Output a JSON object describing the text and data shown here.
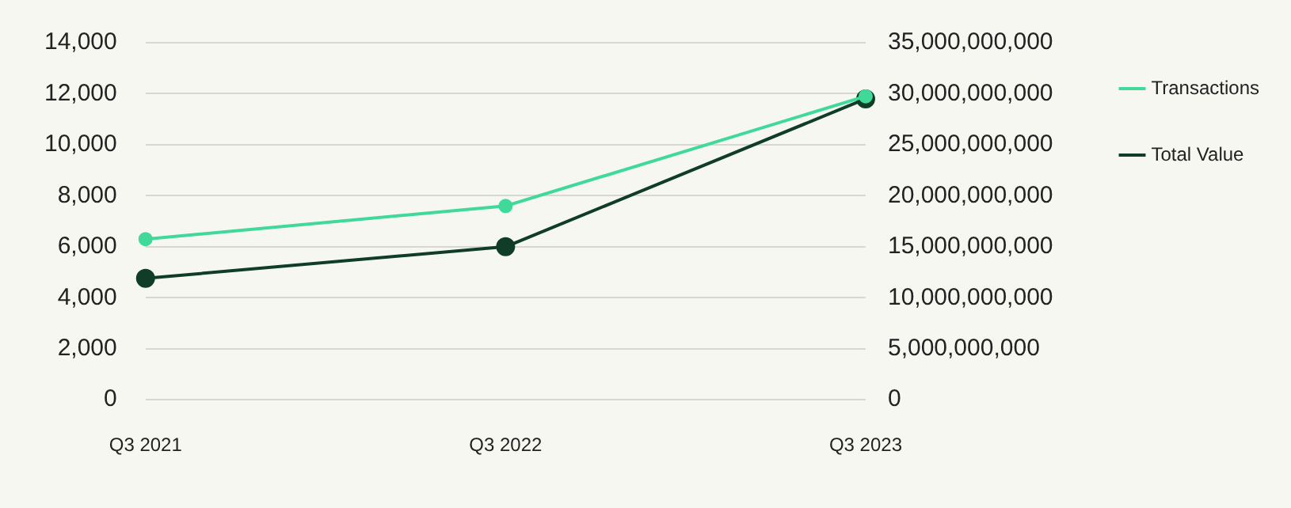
{
  "chart_data": {
    "type": "line",
    "categories": [
      "Q3 2021",
      "Q3 2022",
      "Q3 2023"
    ],
    "series": [
      {
        "name": "Transactions",
        "color": "#40d99a",
        "values": [
          6300,
          7600,
          11900
        ]
      },
      {
        "name": "Total Value",
        "color": "#0f3d26",
        "values": [
          11900000000,
          15000000000,
          29500000000
        ],
        "axis": "y2"
      }
    ],
    "ylim": [
      0,
      14000
    ],
    "yticks": [
      0,
      {
        "value": 2000,
        "label": "2,000"
      },
      {
        "value": 4000,
        "label": "4,000"
      },
      {
        "value": 6000,
        "label": "6,000"
      },
      {
        "value": 8000,
        "label": "8,000"
      },
      {
        "value": 10000,
        "label": "10,000"
      },
      {
        "value": 12000,
        "label": "12,000"
      },
      {
        "value": 14000,
        "label": "14,000"
      }
    ],
    "y2lim": [
      0,
      35000000000
    ],
    "y2ticks": [
      0,
      {
        "value": 5000000000,
        "label": "5,000,000,000"
      },
      {
        "value": 10000000000,
        "label": "10,000,000,000"
      },
      {
        "value": 15000000000,
        "label": "15,000,000,000"
      },
      {
        "value": 20000000000,
        "label": "20,000,000,000"
      },
      {
        "value": 25000000000,
        "label": "25,000,000,000"
      },
      {
        "value": 30000000000,
        "label": "30,000,000,000"
      },
      {
        "value": 35000000000,
        "label": "35,000,000,000"
      }
    ],
    "grid": "y",
    "legend": "top right",
    "marker": "circle",
    "line_style": "solid"
  }
}
